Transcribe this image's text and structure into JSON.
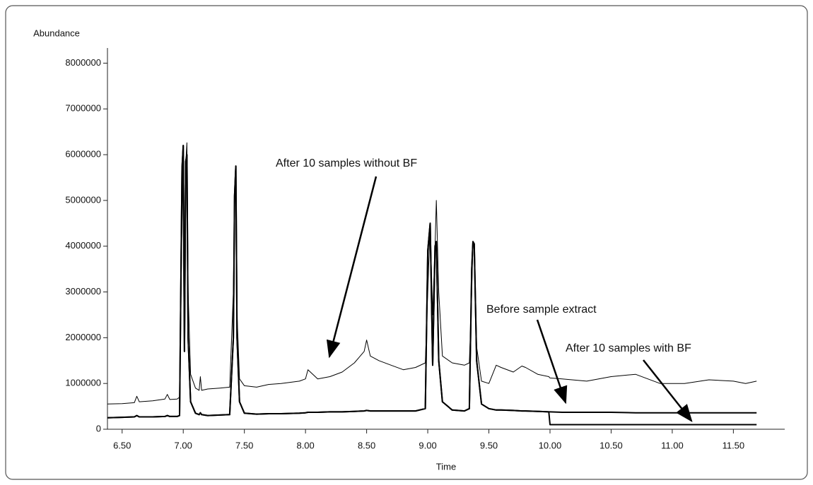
{
  "chart_data": {
    "type": "line",
    "x_label": "Time",
    "y_label": "Abundance",
    "xlim": [
      6.38,
      11.92
    ],
    "ylim": [
      0,
      8300000
    ],
    "xticks": [
      {
        "value": 6.5,
        "label": "6.50"
      },
      {
        "value": 7,
        "label": "7.00"
      },
      {
        "value": 7.5,
        "label": "7.50"
      },
      {
        "value": 8,
        "label": "8.00"
      },
      {
        "value": 8.5,
        "label": "8.50"
      },
      {
        "value": 9,
        "label": "9.00"
      },
      {
        "value": 9.5,
        "label": "9.50"
      },
      {
        "value": 10,
        "label": "10.00"
      },
      {
        "value": 10.5,
        "label": "10.50"
      },
      {
        "value": 11,
        "label": "11.00"
      },
      {
        "value": 11.5,
        "label": "11.50"
      }
    ],
    "yticks": [
      0,
      1000000,
      2000000,
      3000000,
      4000000,
      5000000,
      6000000,
      7000000,
      8000000
    ],
    "x": [
      6.38,
      6.5,
      6.6,
      6.62,
      6.64,
      6.75,
      6.85,
      6.87,
      6.89,
      6.95,
      6.97,
      6.99,
      7.0,
      7.01,
      7.02,
      7.03,
      7.04,
      7.06,
      7.1,
      7.13,
      7.14,
      7.15,
      7.2,
      7.3,
      7.38,
      7.41,
      7.42,
      7.43,
      7.44,
      7.46,
      7.5,
      7.6,
      7.7,
      7.8,
      7.95,
      8.0,
      8.02,
      8.1,
      8.2,
      8.3,
      8.4,
      8.48,
      8.5,
      8.53,
      8.6,
      8.7,
      8.8,
      8.9,
      8.98,
      9.0,
      9.02,
      9.04,
      9.06,
      9.07,
      9.09,
      9.12,
      9.2,
      9.3,
      9.34,
      9.36,
      9.37,
      9.38,
      9.4,
      9.44,
      9.5,
      9.56,
      9.6,
      9.7,
      9.77,
      9.8,
      9.9,
      9.99,
      10.0,
      10.1,
      10.3,
      10.5,
      10.7,
      10.8,
      10.9,
      11.1,
      11.3,
      11.5,
      11.6,
      11.69
    ],
    "series": [
      {
        "name": "After 10 samples without BF",
        "color": "#000000",
        "values": [
          550000,
          560000,
          580000,
          720000,
          600000,
          620000,
          660000,
          760000,
          650000,
          660000,
          700000,
          4500000,
          6200000,
          2000000,
          5800000,
          6260000,
          3000000,
          1200000,
          900000,
          850000,
          1150000,
          850000,
          880000,
          900000,
          920000,
          3000000,
          5100000,
          5750000,
          2500000,
          1100000,
          950000,
          920000,
          980000,
          1000000,
          1050000,
          1100000,
          1300000,
          1100000,
          1150000,
          1250000,
          1450000,
          1700000,
          1950000,
          1600000,
          1500000,
          1400000,
          1300000,
          1350000,
          1450000,
          3000000,
          4500000,
          2500000,
          4000000,
          5000000,
          3000000,
          1600000,
          1450000,
          1400000,
          1450000,
          3000000,
          4100000,
          4000000,
          1800000,
          1050000,
          1000000,
          1400000,
          1350000,
          1250000,
          1380000,
          1350000,
          1200000,
          1150000,
          1120000,
          1100000,
          1050000,
          1150000,
          1200000,
          1100000,
          1000000,
          1000000,
          1080000,
          1050000,
          1000000,
          1050000
        ]
      },
      {
        "name": "Before sample extract",
        "color": "#000000",
        "values": [
          250000,
          260000,
          270000,
          300000,
          270000,
          270000,
          280000,
          300000,
          280000,
          280000,
          300000,
          5700000,
          6200000,
          1700000,
          5850000,
          6000000,
          2000000,
          600000,
          350000,
          320000,
          360000,
          320000,
          300000,
          310000,
          320000,
          2000000,
          5100000,
          5750000,
          2000000,
          600000,
          350000,
          330000,
          340000,
          340000,
          350000,
          360000,
          370000,
          370000,
          380000,
          380000,
          390000,
          400000,
          410000,
          400000,
          400000,
          400000,
          400000,
          400000,
          450000,
          3900000,
          4500000,
          1400000,
          4000000,
          4100000,
          1500000,
          600000,
          420000,
          400000,
          450000,
          3500000,
          4100000,
          4050000,
          1500000,
          550000,
          450000,
          420000,
          420000,
          410000,
          400000,
          400000,
          390000,
          380000,
          380000,
          370000,
          370000,
          370000,
          360000,
          360000,
          360000,
          360000,
          360000,
          360000,
          360000,
          360000
        ]
      },
      {
        "name": "After 10 samples with BF",
        "color": "#000000",
        "values": [
          250000,
          260000,
          270000,
          300000,
          270000,
          270000,
          280000,
          300000,
          280000,
          280000,
          300000,
          5700000,
          6200000,
          1700000,
          5850000,
          6000000,
          2000000,
          600000,
          350000,
          320000,
          360000,
          320000,
          300000,
          310000,
          320000,
          2000000,
          5100000,
          5750000,
          2000000,
          600000,
          350000,
          330000,
          340000,
          340000,
          350000,
          360000,
          370000,
          370000,
          380000,
          380000,
          390000,
          400000,
          410000,
          400000,
          400000,
          400000,
          400000,
          400000,
          450000,
          3900000,
          4500000,
          1400000,
          4000000,
          4100000,
          1500000,
          600000,
          420000,
          400000,
          450000,
          3500000,
          4100000,
          4050000,
          1500000,
          550000,
          450000,
          420000,
          420000,
          410000,
          400000,
          400000,
          390000,
          380000,
          100000,
          100000,
          100000,
          100000,
          100000,
          100000,
          100000,
          100000,
          100000,
          100000,
          100000,
          100000
        ]
      }
    ]
  }
}
